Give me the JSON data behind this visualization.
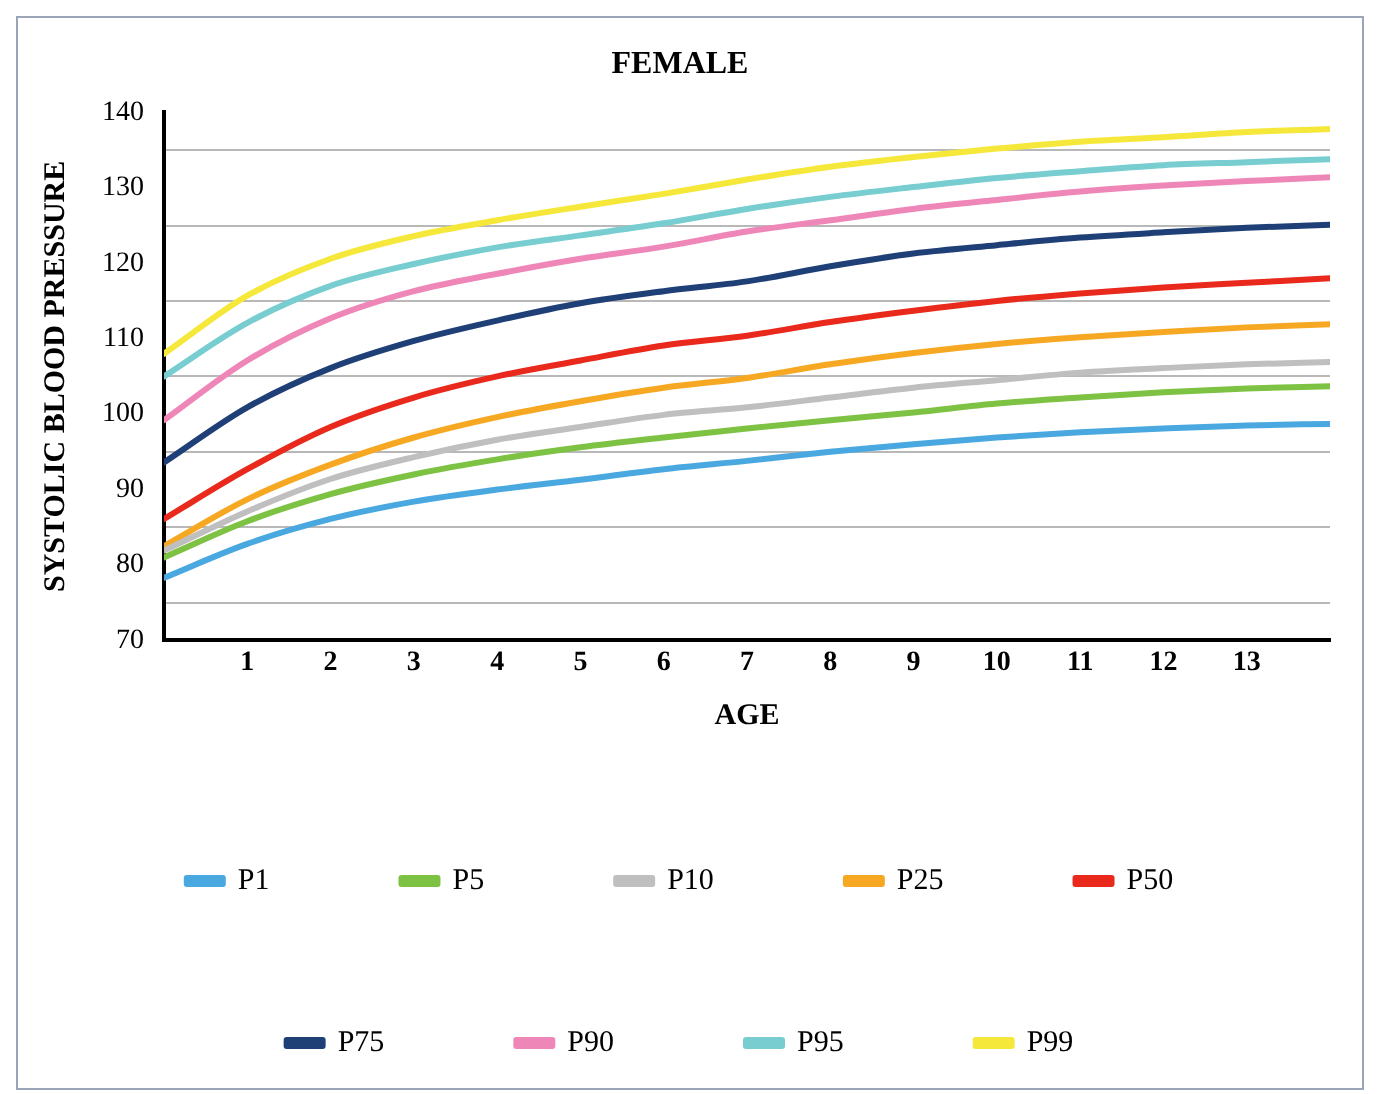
{
  "chart_data": {
    "type": "line",
    "title": "FEMALE",
    "xlabel": "AGE",
    "ylabel": "SYSTOLIC BLOOD PRESSURE",
    "x": [
      0,
      1,
      2,
      3,
      4,
      5,
      6,
      7,
      8,
      9,
      10,
      11,
      12,
      13,
      14
    ],
    "xlim": [
      0,
      14
    ],
    "xticks": [
      1,
      2,
      3,
      4,
      5,
      6,
      7,
      8,
      9,
      10,
      11,
      12,
      13
    ],
    "ylim": [
      70,
      140
    ],
    "yticks": [
      70,
      {
        "value": 75,
        "label": null
      },
      80,
      {
        "value": 85,
        "label": null
      },
      90,
      {
        "value": 95,
        "label": null
      },
      100,
      {
        "value": 105,
        "label": null
      },
      110,
      {
        "value": 115,
        "label": null
      },
      120,
      {
        "value": 125,
        "label": null
      },
      130,
      {
        "value": 135,
        "label": null
      },
      140
    ],
    "grid": "y",
    "legend": "bottom",
    "marker": "none",
    "line_style": "solid",
    "series": [
      {
        "name": "P1",
        "color": "#4aa8e0",
        "values": [
          78.3,
          82.8,
          86.1,
          88.4,
          90.0,
          91.3,
          92.7,
          93.8,
          95.0,
          96.0,
          96.9,
          97.6,
          98.1,
          98.5,
          98.7
        ]
      },
      {
        "name": "P5",
        "color": "#7dc242",
        "values": [
          81.0,
          85.8,
          89.4,
          92.0,
          94.0,
          95.6,
          96.9,
          98.1,
          99.2,
          100.2,
          101.4,
          102.2,
          102.9,
          103.4,
          103.7
        ]
      },
      {
        "name": "P10",
        "color": "#bfbfbf",
        "values": [
          81.9,
          87.1,
          91.4,
          94.3,
          96.6,
          98.3,
          99.9,
          100.9,
          102.2,
          103.5,
          104.5,
          105.5,
          106.1,
          106.6,
          106.9
        ]
      },
      {
        "name": "P25",
        "color": "#f7a823",
        "values": [
          82.5,
          88.7,
          93.3,
          96.9,
          99.6,
          101.7,
          103.5,
          104.8,
          106.6,
          108.1,
          109.3,
          110.2,
          110.9,
          111.5,
          111.9
        ]
      },
      {
        "name": "P50",
        "color": "#e8291c",
        "values": [
          86.1,
          92.7,
          98.3,
          102.2,
          105.0,
          107.1,
          109.1,
          110.4,
          112.2,
          113.7,
          115.0,
          116.0,
          116.8,
          117.4,
          118.0
        ]
      },
      {
        "name": "P75",
        "color": "#1f3f77",
        "values": [
          93.6,
          100.9,
          106.1,
          109.7,
          112.4,
          114.7,
          116.3,
          117.6,
          119.6,
          121.3,
          122.4,
          123.4,
          124.1,
          124.7,
          125.1
        ]
      },
      {
        "name": "P90",
        "color": "#ef86b8",
        "values": [
          99.2,
          107.1,
          112.7,
          116.3,
          118.6,
          120.6,
          122.2,
          124.2,
          125.7,
          127.2,
          128.4,
          129.5,
          130.3,
          130.9,
          131.4
        ]
      },
      {
        "name": "P95",
        "color": "#77cdd0",
        "values": [
          105.0,
          112.1,
          117.0,
          119.9,
          122.1,
          123.7,
          125.3,
          127.2,
          128.8,
          130.1,
          131.3,
          132.2,
          133.0,
          133.4,
          133.8
        ]
      },
      {
        "name": "P99",
        "color": "#f5e83a",
        "values": [
          108.0,
          115.7,
          120.6,
          123.6,
          125.7,
          127.5,
          129.2,
          131.1,
          132.8,
          134.1,
          135.2,
          136.1,
          136.7,
          137.4,
          137.8
        ]
      }
    ]
  }
}
